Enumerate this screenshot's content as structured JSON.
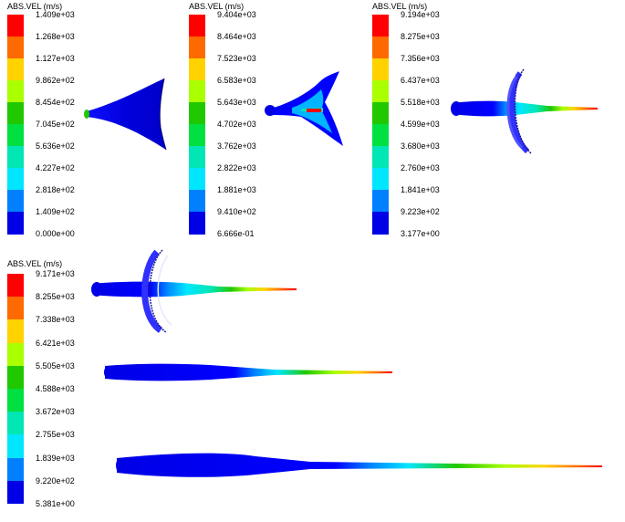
{
  "legend_colors": [
    "#ff0000",
    "#ff6a00",
    "#ffd200",
    "#aaff00",
    "#21c800",
    "#00e040",
    "#00e6b4",
    "#00e6ff",
    "#0080ff",
    "#0000e6"
  ],
  "legends": [
    {
      "title": "ABS.VEL (m/s)",
      "ticks": [
        "1.409e+03",
        "1.268e+03",
        "1.127e+03",
        "9.862e+02",
        "8.454e+02",
        "7.045e+02",
        "5.636e+02",
        "4.227e+02",
        "2.818e+02",
        "1.409e+02",
        "0.000e+00"
      ]
    },
    {
      "title": "ABS.VEL (m/s)",
      "ticks": [
        "9.404e+03",
        "8.464e+03",
        "7.523e+03",
        "6.583e+03",
        "5.643e+03",
        "4.702e+03",
        "3.762e+03",
        "2.822e+03",
        "1.881e+03",
        "9.410e+02",
        "6.666e-01"
      ]
    },
    {
      "title": "ABS.VEL (m/s)",
      "ticks": [
        "9.194e+03",
        "8.275e+03",
        "7.356e+03",
        "6.437e+03",
        "5.518e+03",
        "4.599e+03",
        "3.680e+03",
        "2.760e+03",
        "1.841e+03",
        "9.223e+02",
        "3.177e+00"
      ]
    },
    {
      "title": "ABS.VEL (m/s)",
      "ticks": [
        "9.171e+03",
        "8.255e+03",
        "7.338e+03",
        "6.421e+03",
        "5.505e+03",
        "4.588e+03",
        "3.672e+03",
        "2.755e+03",
        "1.839e+03",
        "9.220e+02",
        "5.381e+00"
      ]
    }
  ]
}
